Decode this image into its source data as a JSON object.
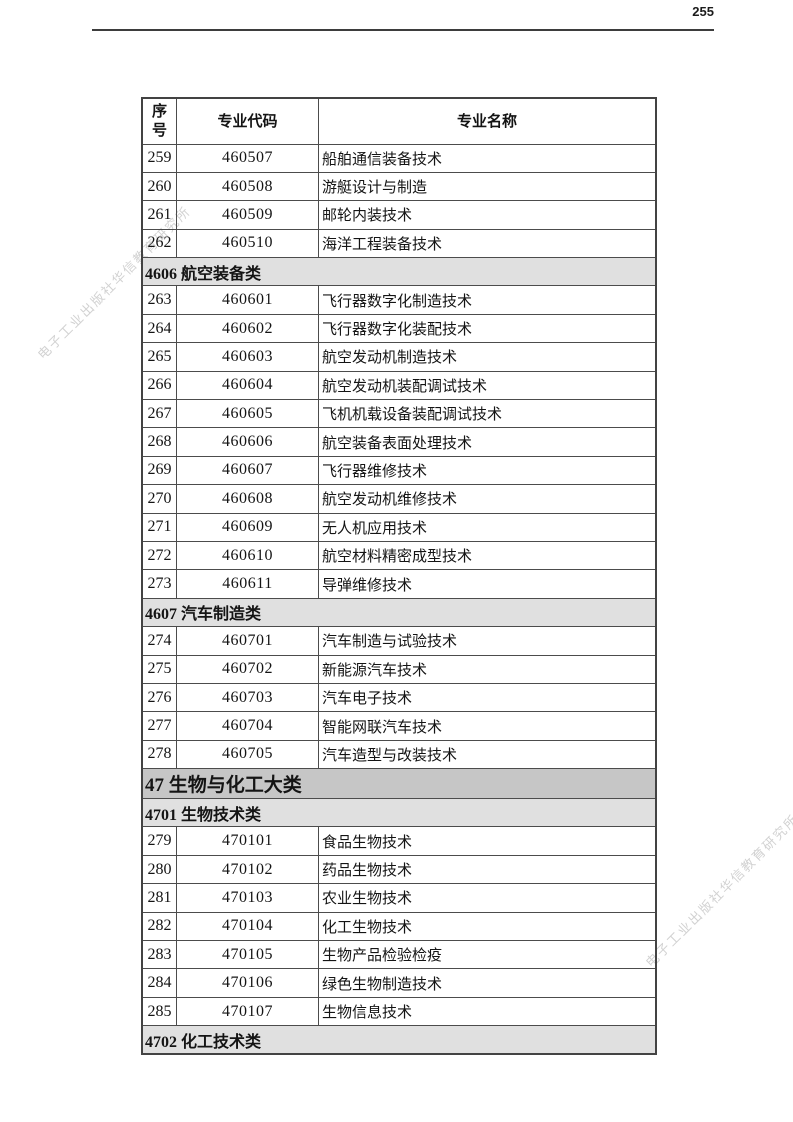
{
  "page": {
    "number": "255"
  },
  "watermark": {
    "text": "电子工业出版社华信教育研究所",
    "color": "#d2d2d2"
  },
  "table": {
    "header_no": "序\n号",
    "header_code": "专业代码",
    "header_name": "专业名称",
    "colors": {
      "border": "#4c4c4c",
      "section_bg": "#e0e0e0",
      "major_section_bg": "#c6c6c6"
    },
    "rows": [
      {
        "type": "data",
        "no": "259",
        "code": "460507",
        "name": "船舶通信装备技术"
      },
      {
        "type": "data",
        "no": "260",
        "code": "460508",
        "name": "游艇设计与制造"
      },
      {
        "type": "data",
        "no": "261",
        "code": "460509",
        "name": "邮轮内装技术"
      },
      {
        "type": "data",
        "no": "262",
        "code": "460510",
        "name": "海洋工程装备技术"
      },
      {
        "type": "section",
        "level": "sub",
        "label": "4606 航空装备类"
      },
      {
        "type": "data",
        "no": "263",
        "code": "460601",
        "name": "飞行器数字化制造技术"
      },
      {
        "type": "data",
        "no": "264",
        "code": "460602",
        "name": "飞行器数字化装配技术"
      },
      {
        "type": "data",
        "no": "265",
        "code": "460603",
        "name": "航空发动机制造技术"
      },
      {
        "type": "data",
        "no": "266",
        "code": "460604",
        "name": "航空发动机装配调试技术"
      },
      {
        "type": "data",
        "no": "267",
        "code": "460605",
        "name": "飞机机载设备装配调试技术"
      },
      {
        "type": "data",
        "no": "268",
        "code": "460606",
        "name": "航空装备表面处理技术"
      },
      {
        "type": "data",
        "no": "269",
        "code": "460607",
        "name": "飞行器维修技术"
      },
      {
        "type": "data",
        "no": "270",
        "code": "460608",
        "name": "航空发动机维修技术"
      },
      {
        "type": "data",
        "no": "271",
        "code": "460609",
        "name": "无人机应用技术"
      },
      {
        "type": "data",
        "no": "272",
        "code": "460610",
        "name": "航空材料精密成型技术"
      },
      {
        "type": "data",
        "no": "273",
        "code": "460611",
        "name": "导弹维修技术"
      },
      {
        "type": "section",
        "level": "sub",
        "label": "4607 汽车制造类"
      },
      {
        "type": "data",
        "no": "274",
        "code": "460701",
        "name": "汽车制造与试验技术"
      },
      {
        "type": "data",
        "no": "275",
        "code": "460702",
        "name": "新能源汽车技术"
      },
      {
        "type": "data",
        "no": "276",
        "code": "460703",
        "name": "汽车电子技术"
      },
      {
        "type": "data",
        "no": "277",
        "code": "460704",
        "name": "智能网联汽车技术"
      },
      {
        "type": "data",
        "no": "278",
        "code": "460705",
        "name": "汽车造型与改装技术"
      },
      {
        "type": "section",
        "level": "major",
        "label": "47 生物与化工大类"
      },
      {
        "type": "section",
        "level": "sub",
        "label": "4701 生物技术类"
      },
      {
        "type": "data",
        "no": "279",
        "code": "470101",
        "name": "食品生物技术"
      },
      {
        "type": "data",
        "no": "280",
        "code": "470102",
        "name": "药品生物技术"
      },
      {
        "type": "data",
        "no": "281",
        "code": "470103",
        "name": "农业生物技术"
      },
      {
        "type": "data",
        "no": "282",
        "code": "470104",
        "name": "化工生物技术"
      },
      {
        "type": "data",
        "no": "283",
        "code": "470105",
        "name": "生物产品检验检疫"
      },
      {
        "type": "data",
        "no": "284",
        "code": "470106",
        "name": "绿色生物制造技术"
      },
      {
        "type": "data",
        "no": "285",
        "code": "470107",
        "name": "生物信息技术"
      },
      {
        "type": "section",
        "level": "sub",
        "label": "4702 化工技术类"
      }
    ]
  }
}
